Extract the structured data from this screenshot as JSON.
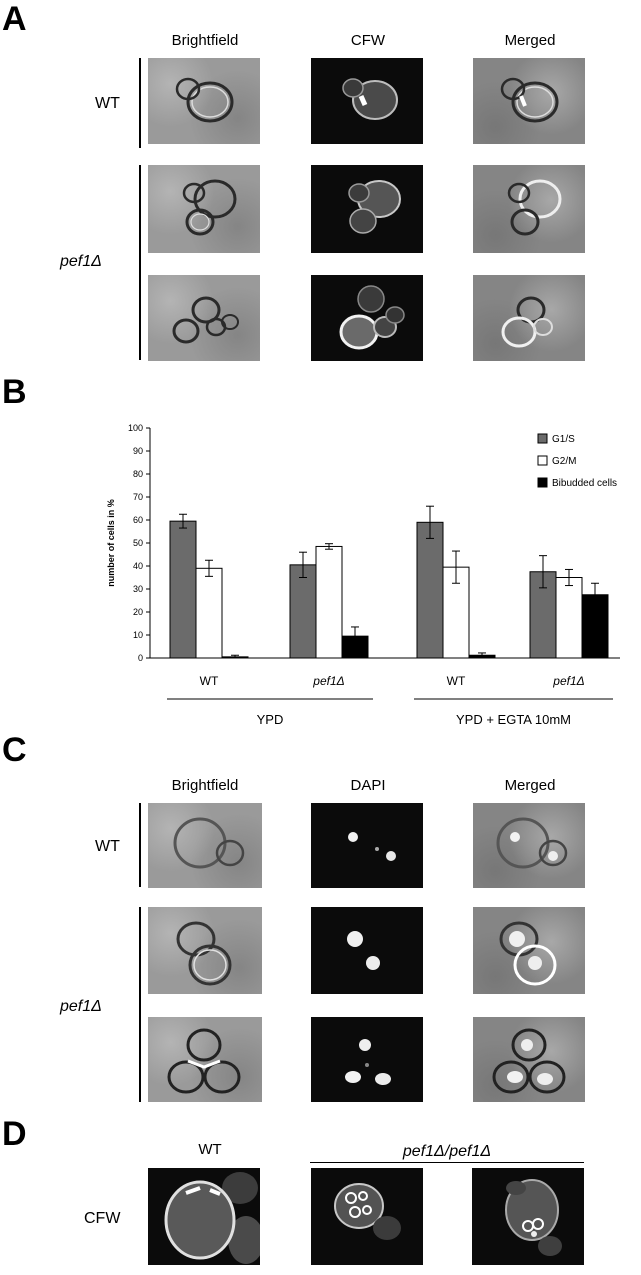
{
  "panels": {
    "A": {
      "letter": "A",
      "columns": [
        "Brightfield",
        "CFW",
        "Merged"
      ],
      "rows": {
        "wt": "WT",
        "mutant": "pef1Δ"
      }
    },
    "B": {
      "letter": "B"
    },
    "C": {
      "letter": "C",
      "columns": [
        "Brightfield",
        "DAPI",
        "Merged"
      ],
      "rows": {
        "wt": "WT",
        "mutant": "pef1Δ"
      }
    },
    "D": {
      "letter": "D",
      "wt_label": "WT",
      "mutant_label": "pef1Δ/pef1Δ",
      "row_label": "CFW"
    }
  },
  "chart_data": {
    "type": "bar",
    "ylabel": "number of cells in %",
    "ylim": [
      0,
      100
    ],
    "yticks": [
      0,
      10,
      20,
      30,
      40,
      50,
      60,
      70,
      80,
      90,
      100
    ],
    "categories": [
      "WT",
      "pef1Δ",
      "WT",
      "pef1Δ"
    ],
    "groups": [
      {
        "label": "YPD",
        "categories": [
          0,
          1
        ]
      },
      {
        "label": "YPD + EGTA 10mM",
        "categories": [
          2,
          3
        ]
      }
    ],
    "series": [
      {
        "name": "G1/S",
        "color": "#6b6b6b",
        "values": [
          59.5,
          40.5,
          59,
          37.5
        ],
        "errors": [
          3,
          5.5,
          7,
          7
        ]
      },
      {
        "name": "G2/M",
        "color": "#ffffff",
        "values": [
          39,
          48.5,
          39.5,
          35
        ],
        "errors": [
          3.5,
          1.2,
          7,
          3.5
        ]
      },
      {
        "name": "Bibudded cells",
        "color": "#000000",
        "values": [
          0.5,
          9.5,
          1.2,
          27.5
        ],
        "errors": [
          0.7,
          4,
          1,
          5
        ]
      }
    ],
    "legend_position": "top-right",
    "grid": false
  }
}
